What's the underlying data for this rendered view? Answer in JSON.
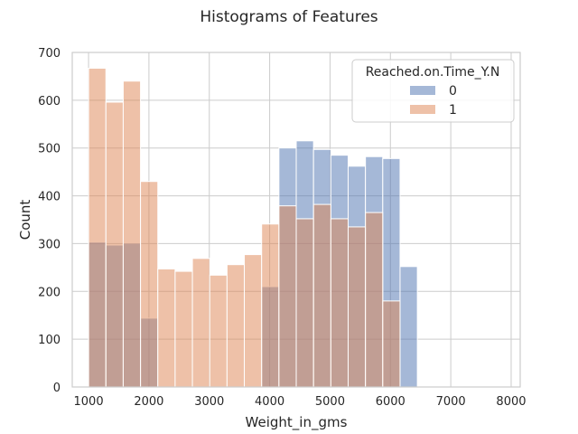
{
  "chart_data": {
    "type": "histogram",
    "title": "Histograms of Features",
    "xlabel": "Weight_in_gms",
    "ylabel": "Count",
    "xlim": [
      730,
      8150
    ],
    "ylim": [
      0,
      700
    ],
    "xticks": [
      1000,
      2000,
      3000,
      4000,
      5000,
      6000,
      7000,
      8000
    ],
    "yticks": [
      0,
      100,
      200,
      300,
      400,
      500,
      600,
      700
    ],
    "grid": true,
    "legend": {
      "title": "Reached.on.Time_Y.N",
      "placement": "top-right"
    },
    "bins": {
      "start": 1001,
      "width": 286.6,
      "count": 24
    },
    "series": [
      {
        "name": "0",
        "color": "#4c72b0",
        "values": [
          303,
          297,
          301,
          144,
          0,
          0,
          0,
          0,
          0,
          0,
          210,
          500,
          515,
          497,
          485,
          462,
          482,
          478,
          252,
          0,
          0,
          0,
          0,
          1
        ]
      },
      {
        "name": "1",
        "color": "#dd8452",
        "values": [
          667,
          596,
          640,
          430,
          247,
          242,
          269,
          234,
          256,
          277,
          341,
          379,
          352,
          382,
          352,
          335,
          365,
          180,
          0,
          0,
          0,
          0,
          0,
          0
        ]
      }
    ],
    "opacity": 0.5
  }
}
